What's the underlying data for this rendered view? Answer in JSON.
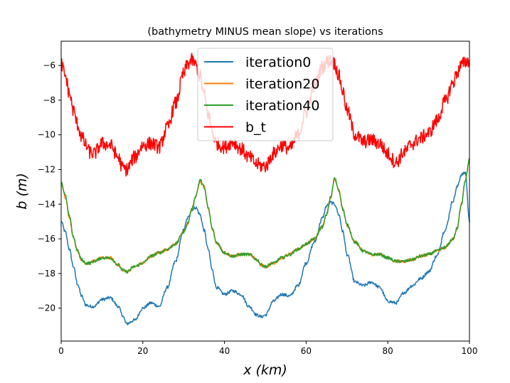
{
  "chart_data": {
    "type": "line",
    "title": "(bathymetry MINUS mean slope) vs iterations",
    "xlabel": "x (km)",
    "ylabel": "b (m)",
    "xlim": [
      0,
      100
    ],
    "ylim": [
      -21.9,
      -4.6
    ],
    "xticks": [
      0,
      20,
      40,
      60,
      80,
      100
    ],
    "yticks": [
      -20,
      -18,
      -16,
      -14,
      -12,
      -10,
      -8,
      -6
    ],
    "xtick_labels": [
      "0",
      "20",
      "40",
      "60",
      "80",
      "100"
    ],
    "ytick_labels": [
      "−20",
      "−18",
      "−16",
      "−14",
      "−12",
      "−10",
      "−8",
      "−6"
    ],
    "legend": {
      "location": "upper-center"
    },
    "grid": false,
    "series": [
      {
        "name": "iteration0",
        "color": "#1f77b4",
        "x": [
          0,
          1,
          2,
          3,
          4,
          5,
          6,
          7,
          8,
          10,
          12,
          14,
          15,
          16,
          18,
          20,
          22,
          24,
          26,
          28,
          30,
          31,
          32,
          33,
          34,
          35,
          36,
          37,
          38,
          40,
          42,
          44,
          46,
          48,
          49,
          50,
          52,
          54,
          56,
          58,
          60,
          62,
          64,
          65,
          66,
          67,
          68,
          69,
          70,
          72,
          74,
          76,
          78,
          80,
          82,
          84,
          86,
          88,
          90,
          92,
          94,
          96,
          97,
          98,
          99,
          100
        ],
        "y": [
          -15.0,
          -15.6,
          -16.6,
          -17.6,
          -18.6,
          -19.3,
          -19.8,
          -19.9,
          -19.9,
          -19.5,
          -19.4,
          -19.9,
          -20.4,
          -20.9,
          -20.7,
          -20.0,
          -19.7,
          -19.9,
          -18.8,
          -17.3,
          -15.5,
          -14.8,
          -14.3,
          -14.2,
          -14.6,
          -15.5,
          -16.6,
          -17.8,
          -18.8,
          -19.2,
          -19.0,
          -19.2,
          -19.9,
          -20.4,
          -20.5,
          -20.4,
          -19.6,
          -19.2,
          -19.3,
          -18.7,
          -17.4,
          -16.2,
          -14.8,
          -14.1,
          -13.9,
          -14.0,
          -14.6,
          -15.6,
          -16.9,
          -18.5,
          -18.7,
          -18.5,
          -18.8,
          -19.6,
          -19.7,
          -19.1,
          -18.7,
          -18.3,
          -17.9,
          -17.0,
          -15.5,
          -13.8,
          -13.0,
          -12.3,
          -12.2,
          -15.0
        ]
      },
      {
        "name": "iteration20",
        "color": "#ff7f0e",
        "x": [
          0,
          1,
          2,
          3,
          4,
          5,
          6,
          7,
          8,
          10,
          12,
          14,
          15,
          16,
          18,
          20,
          22,
          24,
          26,
          28,
          30,
          31,
          32,
          33,
          34,
          35,
          36,
          37,
          38,
          40,
          42,
          44,
          46,
          48,
          49,
          50,
          52,
          54,
          56,
          58,
          60,
          62,
          64,
          65,
          66,
          67,
          68,
          69,
          70,
          72,
          74,
          76,
          78,
          80,
          82,
          84,
          86,
          88,
          90,
          92,
          94,
          96,
          97,
          98,
          99,
          100
        ],
        "y": [
          -12.8,
          -13.6,
          -14.8,
          -15.9,
          -16.7,
          -17.2,
          -17.4,
          -17.4,
          -17.3,
          -17.1,
          -17.1,
          -17.5,
          -17.8,
          -17.9,
          -17.6,
          -17.4,
          -17.0,
          -16.8,
          -16.6,
          -16.3,
          -15.6,
          -15.1,
          -14.3,
          -13.5,
          -12.7,
          -13.0,
          -14.2,
          -15.4,
          -16.2,
          -16.8,
          -17.0,
          -16.9,
          -16.9,
          -17.2,
          -17.5,
          -17.6,
          -17.4,
          -17.1,
          -16.9,
          -16.6,
          -16.3,
          -16.0,
          -15.3,
          -14.6,
          -13.6,
          -12.6,
          -13.2,
          -14.3,
          -15.2,
          -16.2,
          -16.7,
          -16.9,
          -16.9,
          -17.1,
          -17.3,
          -17.3,
          -17.2,
          -17.0,
          -16.9,
          -16.7,
          -16.5,
          -16.0,
          -15.4,
          -14.0,
          -12.6,
          -11.4
        ]
      },
      {
        "name": "iteration40",
        "color": "#2ca02c",
        "x": [
          0,
          1,
          2,
          3,
          4,
          5,
          6,
          7,
          8,
          10,
          12,
          14,
          15,
          16,
          18,
          20,
          22,
          24,
          26,
          28,
          30,
          31,
          32,
          33,
          34,
          35,
          36,
          37,
          38,
          40,
          42,
          44,
          46,
          48,
          49,
          50,
          52,
          54,
          56,
          58,
          60,
          62,
          64,
          65,
          66,
          67,
          68,
          69,
          70,
          72,
          74,
          76,
          78,
          80,
          82,
          84,
          86,
          88,
          90,
          92,
          94,
          96,
          97,
          98,
          99,
          100
        ],
        "y": [
          -12.7,
          -13.5,
          -14.7,
          -15.9,
          -16.7,
          -17.2,
          -17.4,
          -17.4,
          -17.3,
          -17.1,
          -17.1,
          -17.5,
          -17.8,
          -17.9,
          -17.6,
          -17.4,
          -17.0,
          -16.8,
          -16.6,
          -16.3,
          -15.6,
          -15.1,
          -14.3,
          -13.5,
          -12.6,
          -13.0,
          -14.2,
          -15.4,
          -16.2,
          -16.8,
          -17.0,
          -16.9,
          -16.9,
          -17.2,
          -17.5,
          -17.6,
          -17.4,
          -17.1,
          -16.9,
          -16.6,
          -16.3,
          -16.0,
          -15.3,
          -14.6,
          -13.6,
          -12.5,
          -13.2,
          -14.3,
          -15.2,
          -16.2,
          -16.7,
          -16.9,
          -16.9,
          -17.1,
          -17.3,
          -17.3,
          -17.2,
          -17.0,
          -16.9,
          -16.7,
          -16.5,
          -16.0,
          -15.4,
          -14.0,
          -12.6,
          -11.4
        ]
      },
      {
        "name": "b_t",
        "color": "#ff0000",
        "x": [
          0,
          1,
          2,
          3,
          4,
          5,
          6,
          7,
          8,
          10,
          12,
          14,
          15,
          16,
          18,
          20,
          22,
          24,
          26,
          28,
          30,
          31,
          32,
          33,
          34,
          35,
          36,
          37,
          38,
          40,
          42,
          44,
          46,
          48,
          49,
          50,
          52,
          54,
          56,
          58,
          60,
          62,
          64,
          65,
          66,
          67,
          68,
          69,
          70,
          72,
          74,
          76,
          78,
          80,
          82,
          84,
          86,
          88,
          90,
          92,
          94,
          96,
          97,
          98,
          99,
          100
        ],
        "y": [
          -5.9,
          -6.6,
          -7.6,
          -8.6,
          -9.4,
          -10.1,
          -10.6,
          -11.0,
          -11.1,
          -10.5,
          -10.6,
          -11.3,
          -11.9,
          -12.0,
          -11.3,
          -10.6,
          -10.5,
          -10.7,
          -9.6,
          -8.2,
          -6.5,
          -5.9,
          -5.7,
          -6.0,
          -6.6,
          -7.7,
          -8.8,
          -9.8,
          -10.5,
          -10.7,
          -10.4,
          -10.8,
          -11.3,
          -11.7,
          -11.8,
          -11.8,
          -11.1,
          -10.6,
          -10.8,
          -10.0,
          -8.7,
          -7.2,
          -6.1,
          -5.8,
          -5.7,
          -5.9,
          -6.6,
          -7.5,
          -8.6,
          -10.0,
          -10.4,
          -10.3,
          -10.5,
          -11.1,
          -11.6,
          -11.0,
          -10.5,
          -10.2,
          -9.9,
          -9.2,
          -8.1,
          -7.0,
          -6.4,
          -6.0,
          -5.8,
          -5.7
        ],
        "noise_amplitude": 0.4
      }
    ]
  }
}
